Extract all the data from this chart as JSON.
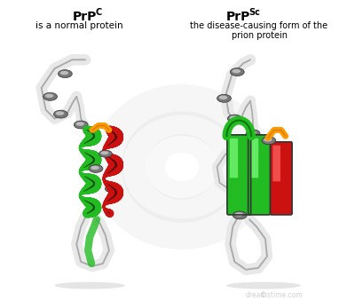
{
  "bg_color": "#ffffff",
  "loop_color": "#e8e8e8",
  "loop_edge_color": "#aaaaaa",
  "helix_green": "#22bb22",
  "helix_red": "#cc1111",
  "orange": "#ff9900",
  "sheet_dark": "#555555",
  "sheet_light": "#888888",
  "watermark_spiral_color": "#e0e0e0",
  "shadow_color": "#cccccc",
  "text_color": "#000000",
  "dreamstime_color": "#c0c0c0",
  "title_left": "PrP",
  "super_left": "C",
  "sub_left": "is a normal protein",
  "title_right": "PrP",
  "super_right": "Sc",
  "sub_right_1": "the disease-causing form of the",
  "sub_right_2": "prion protein"
}
